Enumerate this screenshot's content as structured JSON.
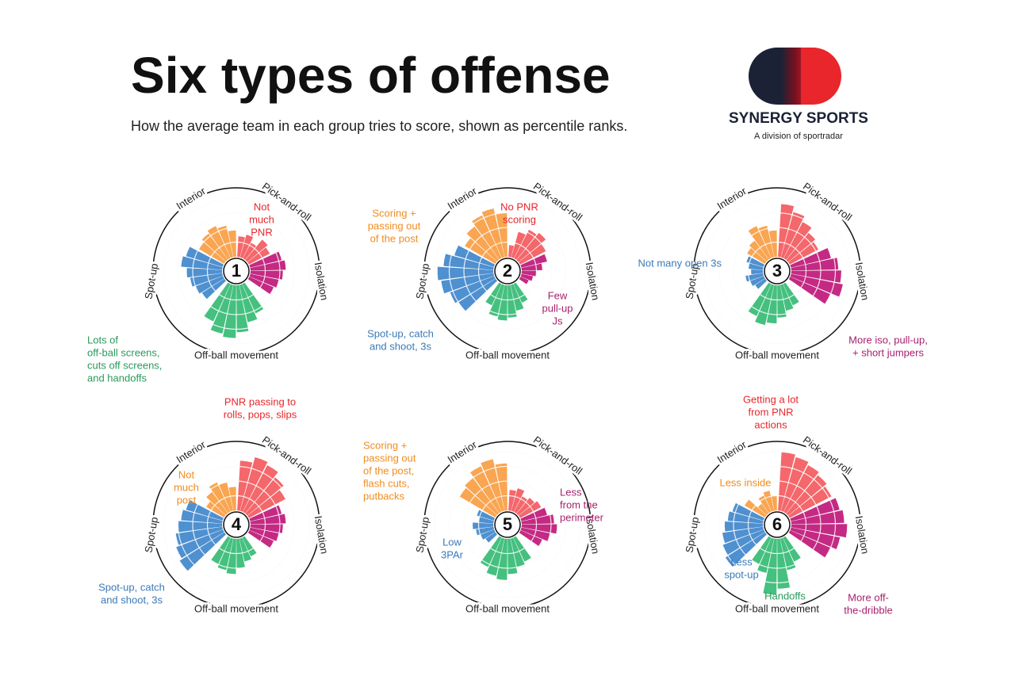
{
  "title": "Six types of offense",
  "subtitle": "How the average team in each group tries to score, shown as percentile ranks.",
  "logo": {
    "name": "SYNERGY SPORTS",
    "tagline": "A division of sportradar"
  },
  "chart_data": [
    {
      "type": "polar_bar",
      "label": "1",
      "rlim": [
        0,
        100
      ],
      "rticks": [
        25,
        50,
        75,
        100
      ],
      "series": [
        {
          "name": "Interior",
          "color": "#f9a551",
          "values": [
            50,
            55,
            60,
            55,
            45
          ]
        },
        {
          "name": "Pick-and-roll",
          "color": "#f4676b",
          "values": [
            35,
            40,
            30,
            45,
            40
          ]
        },
        {
          "name": "Isolation",
          "color": "#c42a83",
          "values": [
            55,
            60,
            55,
            50,
            45
          ]
        },
        {
          "name": "Off-ball movement",
          "color": "#45c07f",
          "values": [
            55,
            65,
            80,
            90,
            85,
            70
          ]
        },
        {
          "name": "Spot-up",
          "color": "#4f90d0",
          "values": [
            45,
            50,
            55,
            60,
            70,
            65
          ]
        }
      ],
      "annotations": [
        {
          "text": [
            "Not",
            "much",
            "PNR"
          ],
          "color": "#e8262b"
        },
        {
          "text": [
            "Lots of",
            "off-ball screens,",
            "cuts off screens,",
            "and handoffs"
          ],
          "color": "#2a9a5a"
        }
      ]
    },
    {
      "type": "polar_bar",
      "label": "2",
      "rlim": [
        0,
        100
      ],
      "rticks": [
        25,
        50,
        75,
        100
      ],
      "series": [
        {
          "name": "Interior",
          "color": "#f9a551",
          "values": [
            60,
            70,
            80,
            85,
            75
          ]
        },
        {
          "name": "Pick-and-roll",
          "color": "#f4676b",
          "values": [
            20,
            45,
            55,
            60,
            50
          ]
        },
        {
          "name": "Isolation",
          "color": "#c42a83",
          "values": [
            45,
            35,
            25,
            20,
            15
          ]
        },
        {
          "name": "Off-ball movement",
          "color": "#45c07f",
          "values": [
            35,
            45,
            55,
            60,
            55,
            40
          ]
        },
        {
          "name": "Spot-up",
          "color": "#4f90d0",
          "values": [
            75,
            80,
            90,
            95,
            85,
            70
          ]
        }
      ],
      "annotations": [
        {
          "text": [
            "Scoring +",
            "passing out",
            "of the post"
          ],
          "color": "#f08c1e"
        },
        {
          "text": [
            "No PNR",
            "scoring"
          ],
          "color": "#e8262b"
        },
        {
          "text": [
            "Few",
            "pull-up",
            "Js"
          ],
          "color": "#a8206e"
        },
        {
          "text": [
            "Spot-up, catch",
            "and shoot, 3s"
          ],
          "color": "#3a7ab8"
        }
      ]
    },
    {
      "type": "polar_bar",
      "label": "3",
      "rlim": [
        0,
        100
      ],
      "rticks": [
        25,
        50,
        75,
        100
      ],
      "series": [
        {
          "name": "Interior",
          "color": "#f9a551",
          "values": [
            35,
            40,
            60,
            55,
            45
          ]
        },
        {
          "name": "Pick-and-roll",
          "color": "#f4676b",
          "values": [
            90,
            80,
            70,
            60,
            55
          ]
        },
        {
          "name": "Isolation",
          "color": "#c42a83",
          "values": [
            70,
            80,
            85,
            90,
            75
          ]
        },
        {
          "name": "Off-ball movement",
          "color": "#45c07f",
          "values": [
            40,
            45,
            55,
            65,
            70,
            60
          ]
        },
        {
          "name": "Spot-up",
          "color": "#4f90d0",
          "values": [
            20,
            25,
            30,
            20,
            25,
            30
          ]
        }
      ],
      "annotations": [
        {
          "text": [
            "Not many open 3s"
          ],
          "color": "#3a7ab8"
        },
        {
          "text": [
            "More iso, pull-up,",
            "+ short jumpers"
          ],
          "color": "#a8206e"
        }
      ]
    },
    {
      "type": "polar_bar",
      "label": "4",
      "rlim": [
        0,
        100
      ],
      "rticks": [
        25,
        50,
        75,
        100
      ],
      "series": [
        {
          "name": "Interior",
          "color": "#f9a551",
          "values": [
            35,
            45,
            55,
            50,
            40
          ]
        },
        {
          "name": "Pick-and-roll",
          "color": "#f4676b",
          "values": [
            85,
            95,
            90,
            80,
            70
          ]
        },
        {
          "name": "Isolation",
          "color": "#c42a83",
          "values": [
            55,
            60,
            55,
            50,
            45
          ]
        },
        {
          "name": "Off-ball movement",
          "color": "#45c07f",
          "values": [
            35,
            40,
            50,
            60,
            55,
            50
          ]
        },
        {
          "name": "Spot-up",
          "color": "#4f90d0",
          "values": [
            90,
            85,
            80,
            75,
            70,
            65
          ]
        }
      ],
      "annotations": [
        {
          "text": [
            "PNR passing to",
            "rolls, pops, slips"
          ],
          "color": "#e8262b"
        },
        {
          "text": [
            "Not",
            "much",
            "post"
          ],
          "color": "#f08c1e"
        },
        {
          "text": [
            "Spot-up, catch",
            "and shoot, 3s"
          ],
          "color": "#3a7ab8"
        }
      ]
    },
    {
      "type": "polar_bar",
      "label": "5",
      "rlim": [
        0,
        100
      ],
      "rticks": [
        25,
        50,
        75,
        100
      ],
      "series": [
        {
          "name": "Interior",
          "color": "#f9a551",
          "values": [
            70,
            75,
            85,
            90,
            80
          ]
        },
        {
          "name": "Pick-and-roll",
          "color": "#f4676b",
          "values": [
            35,
            40,
            30,
            35,
            40
          ]
        },
        {
          "name": "Isolation",
          "color": "#c42a83",
          "values": [
            45,
            55,
            60,
            50,
            40
          ]
        },
        {
          "name": "Off-ball movement",
          "color": "#45c07f",
          "values": [
            45,
            50,
            60,
            70,
            65,
            55
          ]
        },
        {
          "name": "Spot-up",
          "color": "#4f90d0",
          "values": [
            20,
            25,
            30,
            35,
            25,
            30
          ]
        }
      ],
      "annotations": [
        {
          "text": [
            "Scoring +",
            "passing out",
            "of the post,",
            "flash cuts,",
            "putbacks"
          ],
          "color": "#f08c1e"
        },
        {
          "text": [
            "Less",
            "from the",
            "perimeter"
          ],
          "color": "#a8206e"
        },
        {
          "text": [
            "Low",
            "3PAr"
          ],
          "color": "#3a7ab8"
        }
      ]
    },
    {
      "type": "polar_bar",
      "label": "6",
      "rlim": [
        0,
        100
      ],
      "rticks": [
        25,
        50,
        75,
        100
      ],
      "series": [
        {
          "name": "Interior",
          "color": "#f9a551",
          "values": [
            40,
            20,
            30,
            35,
            25
          ]
        },
        {
          "name": "Pick-and-roll",
          "color": "#f4676b",
          "values": [
            100,
            95,
            90,
            85,
            80
          ]
        },
        {
          "name": "Isolation",
          "color": "#c42a83",
          "values": [
            85,
            90,
            95,
            85,
            75
          ]
        },
        {
          "name": "Off-ball movement",
          "color": "#45c07f",
          "values": [
            45,
            55,
            85,
            95,
            60,
            50
          ]
        },
        {
          "name": "Spot-up",
          "color": "#4f90d0",
          "values": [
            80,
            75,
            70,
            65,
            60,
            55
          ]
        }
      ],
      "annotations": [
        {
          "text": [
            "Getting a lot",
            "from PNR",
            "actions"
          ],
          "color": "#e8262b"
        },
        {
          "text": [
            "Less inside"
          ],
          "color": "#f08c1e"
        },
        {
          "text": [
            "Less",
            "spot-up"
          ],
          "color": "#3a7ab8"
        },
        {
          "text": [
            "Handoffs"
          ],
          "color": "#2a9a5a"
        },
        {
          "text": [
            "More off-",
            "the-dribble"
          ],
          "color": "#a8206e"
        }
      ]
    }
  ]
}
